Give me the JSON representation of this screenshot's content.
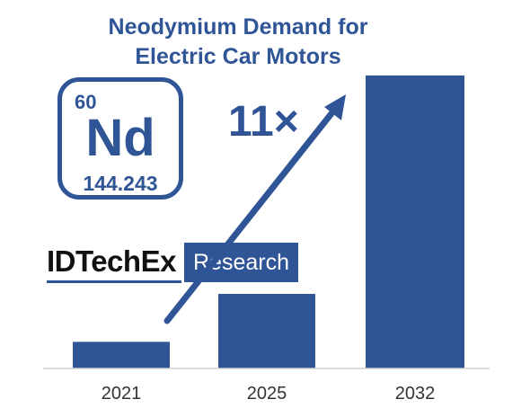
{
  "title_lines": [
    "Neodymium Demand for",
    "Electric Car Motors"
  ],
  "element": {
    "atomic_number": "60",
    "symbol": "Nd",
    "atomic_mass": "144.243"
  },
  "logo": {
    "brand": "IDTechEx",
    "tag": "Research"
  },
  "growth_label": "11×",
  "colors": {
    "bar": "#2f5597",
    "text_blue": "#2f5597",
    "axis": "#d0d0d0"
  },
  "chart_data": {
    "type": "bar",
    "title": "Neodymium Demand for Electric Car Motors",
    "categories": [
      "2021",
      "2025",
      "2032"
    ],
    "values": [
      1,
      2.8,
      11
    ],
    "ylim": [
      0,
      11
    ],
    "annotations": [
      "11×"
    ],
    "grid": false,
    "legend": "none"
  }
}
